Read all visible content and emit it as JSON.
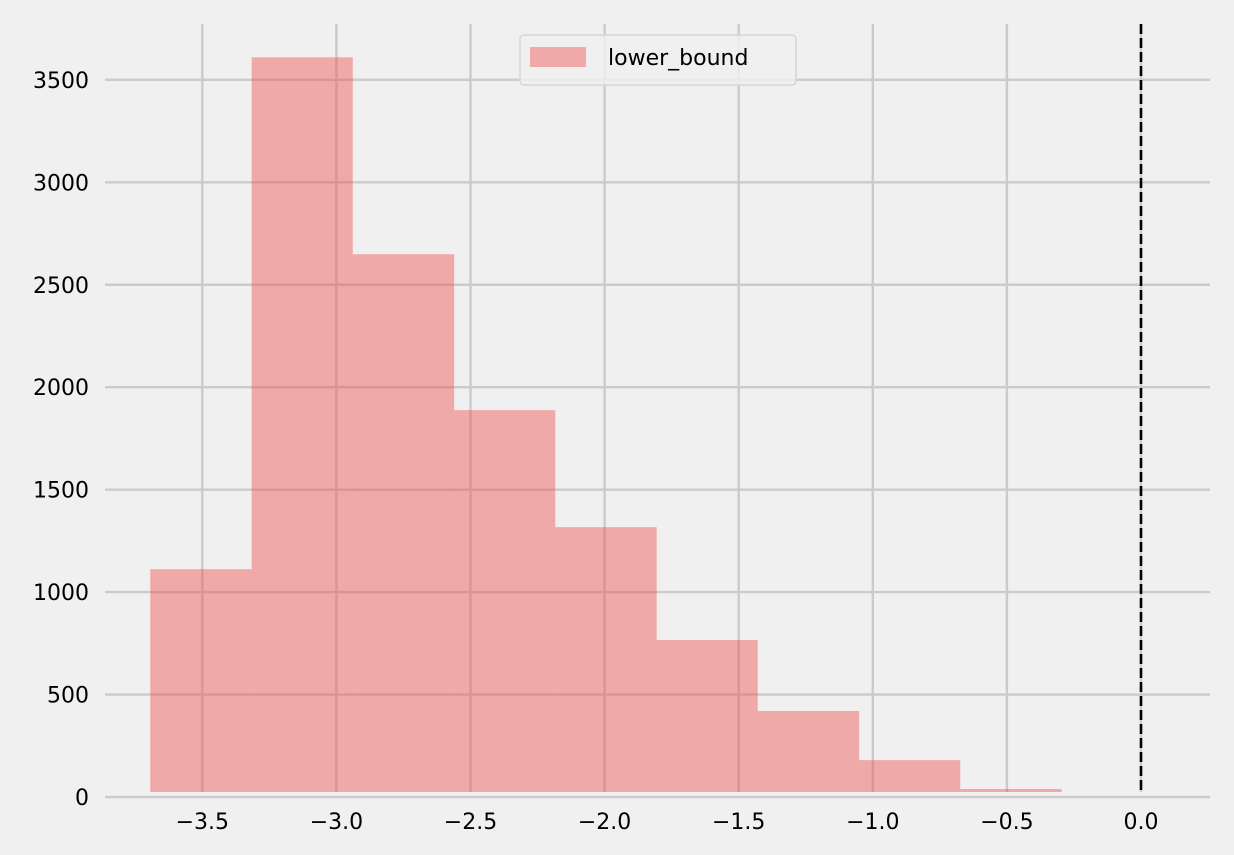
{
  "chart_data": {
    "type": "bar",
    "subtype": "histogram",
    "title": "",
    "xlabel": "",
    "ylabel": "",
    "bin_edges": [
      -3.694,
      -3.316,
      -2.939,
      -2.561,
      -2.184,
      -1.806,
      -1.429,
      -1.051,
      -0.674,
      -0.296
    ],
    "series": [
      {
        "name": "lower_bound",
        "color": "#f4a7a8",
        "values": [
          1112,
          3610,
          2649,
          1888,
          1317,
          766,
          420,
          180,
          39
        ]
      }
    ],
    "xlim": [
      -3.89,
      0.26
    ],
    "ylim": [
      -25,
      3750
    ],
    "xticks": [
      -3.5,
      -3.0,
      -2.5,
      -2.0,
      -1.5,
      -1.0,
      -0.5,
      0.0
    ],
    "xtick_labels": [
      "−3.5",
      "−3.0",
      "−2.5",
      "−2.0",
      "−1.5",
      "−1.0",
      "−0.5",
      "0.0"
    ],
    "yticks": [
      0,
      500,
      1000,
      1500,
      2000,
      2500,
      3000,
      3500
    ],
    "ytick_labels": [
      "0",
      "500",
      "1000",
      "1500",
      "2000",
      "2500",
      "3000",
      "3500"
    ],
    "reference_line": {
      "x": 0.0,
      "style": "dashed",
      "color": "#000000"
    },
    "grid": true,
    "legend": {
      "position": "upper center",
      "entries": [
        "lower_bound"
      ]
    },
    "style": "fivethirtyeight",
    "background": "#f0f0f0",
    "grid_color": "#cbcbcb"
  }
}
